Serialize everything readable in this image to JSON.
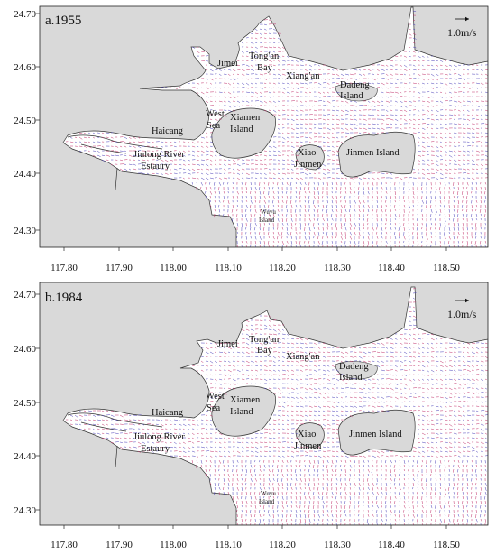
{
  "panels": [
    {
      "panel_label": "a.1955",
      "scale_label": "1.0m/s",
      "x_ticks": [
        "117.80",
        "117.90",
        "118.00",
        "118.10",
        "118.20",
        "118.30",
        "118.40",
        "118.50"
      ],
      "y_ticks": [
        "24.70",
        "24.60",
        "24.50",
        "24.40",
        "24.30"
      ],
      "place_labels": {
        "jimei": "Jimei",
        "tongan_1": "Tong'an",
        "tongan_2": "Bay",
        "xiangan": "Xiang'an",
        "dadeng_1": "Dadeng",
        "dadeng_2": "Island",
        "west_sea_1": "West",
        "west_sea_2": "Sea",
        "xiamen_1": "Xiamen",
        "xiamen_2": "Island",
        "haicang": "Haicang",
        "xiao_1": "Xiao",
        "xiao_2": "Jinmen",
        "jinmen": "Jinmen Island",
        "jiulong_1": "Jiulong River",
        "jiulong_2": "Estaury",
        "wuyu_1": "Wuyu",
        "wuyu_2": "Island"
      }
    },
    {
      "panel_label": "b.1984",
      "scale_label": "1.0m/s",
      "x_ticks": [
        "117.80",
        "117.90",
        "118.00",
        "118.10",
        "118.20",
        "118.30",
        "118.40",
        "118.50"
      ],
      "y_ticks": [
        "24.70",
        "24.60",
        "24.50",
        "24.40",
        "24.30"
      ],
      "place_labels": {
        "jimei": "Jimei",
        "tongan_1": "Tong'an",
        "tongan_2": "Bay",
        "xiangan": "Xiang'an",
        "dadeng_1": "Dadeng",
        "dadeng_2": "Island",
        "west_sea_1": "West",
        "west_sea_2": "Sea",
        "xiamen_1": "Xiamen",
        "xiamen_2": "Island",
        "haicang": "Haicang",
        "xiao_1": "Xiao",
        "xiao_2": "Jinmen",
        "jinmen": "Jinmen Island",
        "jiulong_1": "Jiulong River",
        "jiulong_2": "Estaury",
        "wuyu_1": "Wuyu",
        "wuyu_2": "Island"
      }
    }
  ],
  "colors": {
    "land": "#d9d9d9",
    "water": "#ffffff",
    "vector_a": "#c0306a",
    "vector_b": "#4a3fb8",
    "frame": "#222222"
  }
}
